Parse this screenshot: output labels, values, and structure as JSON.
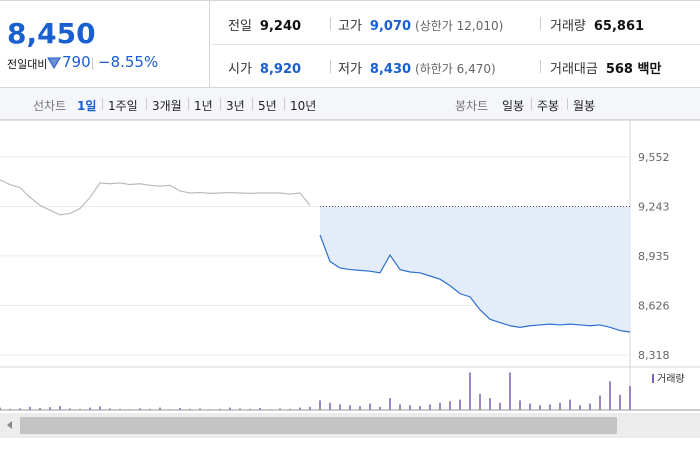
{
  "header": {
    "price": "8,450",
    "change_label": "전일대비",
    "change": "790",
    "change_rate": "−8.55%"
  },
  "stats": [
    {
      "label": "전일",
      "value": "9,240",
      "color": "#111111"
    },
    {
      "label": "고가",
      "value": "9,070",
      "note": "(상한가 12,010)",
      "color": "#1a5fd0"
    },
    {
      "label": "거래량",
      "value": "65,861",
      "color": "#111111"
    },
    {
      "label": "시가",
      "value": "8,920",
      "color": "#1a5fd0"
    },
    {
      "label": "저가",
      "value": "8,430",
      "note": "(하한가 6,470)",
      "color": "#1a5fd0"
    },
    {
      "label": "거래대금",
      "value": "568 백만",
      "color": "#111111"
    }
  ],
  "tabs": {
    "line_label": "선차트",
    "line_periods": [
      "1일",
      "1주일",
      "3개월",
      "1년",
      "3년",
      "5년",
      "10년"
    ],
    "selected": 0,
    "candle_label": "봉차트",
    "candle_periods": [
      "일봉",
      "주봉",
      "월봉"
    ]
  },
  "chart_data": {
    "type": "line",
    "ylim": [
      8274,
      9751
    ],
    "yticks": [
      {
        "value": 9552,
        "label": "9,552"
      },
      {
        "value": 9243,
        "label": "9,243"
      },
      {
        "value": 8935,
        "label": "8,935"
      },
      {
        "value": 8626,
        "label": "8,626"
      },
      {
        "value": 8318,
        "label": "8,318"
      }
    ],
    "grid": true,
    "baseline": 9243,
    "series": [
      {
        "color": "#bbbbbb",
        "values": [
          9409,
          9380,
          9360,
          9300,
          9250,
          9220,
          9191,
          9200,
          9230,
          9300,
          9390,
          9385,
          9390,
          9380,
          9385,
          9375,
          9370,
          9375,
          9340,
          9327,
          9330,
          9325,
          9327,
          9330,
          9327,
          9325,
          9327,
          9327,
          9327,
          9320,
          9327,
          9250,
          null,
          null,
          null,
          null,
          null,
          null,
          null,
          null,
          null,
          null,
          null,
          null,
          null,
          null,
          null,
          null,
          null,
          null,
          null,
          null,
          null,
          null,
          null,
          null,
          null,
          null,
          null,
          null,
          null,
          null,
          null,
          null
        ]
      },
      {
        "color": "#2f6fcf",
        "fill": "#e3ecf9",
        "values": [
          null,
          null,
          null,
          null,
          null,
          null,
          null,
          null,
          null,
          null,
          null,
          null,
          null,
          null,
          null,
          null,
          null,
          null,
          null,
          null,
          null,
          null,
          null,
          null,
          null,
          null,
          null,
          null,
          null,
          null,
          null,
          null,
          9066,
          8900,
          8860,
          8850,
          8845,
          8840,
          8830,
          8940,
          8850,
          8835,
          8830,
          8810,
          8790,
          8750,
          8700,
          8680,
          8600,
          8540,
          8520,
          8500,
          8490,
          8500,
          8505,
          8510,
          8505,
          8510,
          8505,
          8500,
          8505,
          8490,
          8470,
          8461
        ]
      }
    ],
    "volume": {
      "name": "거래량",
      "color": "#7b5fb0",
      "ylim": [
        0,
        5000
      ],
      "values": [
        300,
        150,
        200,
        400,
        250,
        350,
        500,
        200,
        150,
        300,
        450,
        200,
        150,
        100,
        200,
        150,
        300,
        100,
        250,
        150,
        200,
        100,
        150,
        300,
        200,
        150,
        250,
        100,
        200,
        150,
        300,
        400,
        1200,
        900,
        700,
        600,
        500,
        800,
        400,
        1500,
        700,
        600,
        500,
        700,
        900,
        1100,
        1300,
        4700,
        2000,
        1500,
        900,
        4700,
        1200,
        800,
        600,
        700,
        900,
        1300,
        600,
        800,
        1800,
        3600,
        1900,
        3000
      ]
    }
  }
}
